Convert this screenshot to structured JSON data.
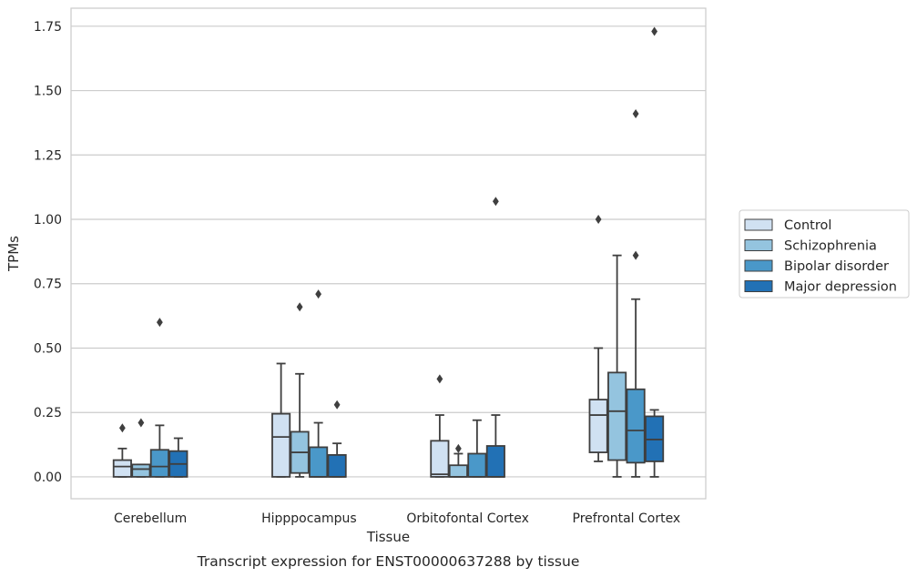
{
  "chart_data": {
    "type": "box",
    "title": "",
    "caption": "Transcript expression for ENST00000637288 by tissue",
    "xlabel": "Tissue",
    "ylabel": "TPMs",
    "ylim": [
      -0.085,
      1.82
    ],
    "yticks": [
      "0.00",
      "0.25",
      "0.50",
      "0.75",
      "1.00",
      "1.25",
      "1.50",
      "1.75"
    ],
    "grid": "horizontal",
    "legend_position": "right",
    "categories": [
      "Cerebellum",
      "Hipppocampus",
      "Orbitofontal Cortex",
      "Prefrontal Cortex"
    ],
    "series": [
      {
        "name": "Control",
        "color": "#d0e1f2",
        "boxes": [
          {
            "whislo": 0.0,
            "q1": 0.0,
            "med": 0.04,
            "q3": 0.065,
            "whishi": 0.11,
            "fliers": [
              0.19
            ]
          },
          {
            "whislo": 0.0,
            "q1": 0.0,
            "med": 0.155,
            "q3": 0.245,
            "whishi": 0.44,
            "fliers": []
          },
          {
            "whislo": 0.0,
            "q1": 0.0,
            "med": 0.01,
            "q3": 0.14,
            "whishi": 0.24,
            "fliers": [
              0.38
            ]
          },
          {
            "whislo": 0.06,
            "q1": 0.095,
            "med": 0.24,
            "q3": 0.3,
            "whishi": 0.5,
            "fliers": [
              1.0
            ]
          }
        ]
      },
      {
        "name": "Schizophrenia",
        "color": "#94c4df",
        "boxes": [
          {
            "whislo": 0.0,
            "q1": 0.0,
            "med": 0.03,
            "q3": 0.048,
            "whishi": 0.048,
            "fliers": [
              0.21
            ]
          },
          {
            "whislo": 0.0,
            "q1": 0.015,
            "med": 0.095,
            "q3": 0.175,
            "whishi": 0.4,
            "fliers": [
              0.66
            ]
          },
          {
            "whislo": 0.0,
            "q1": 0.0,
            "med": 0.0,
            "q3": 0.045,
            "whishi": 0.09,
            "fliers": [
              0.11
            ]
          },
          {
            "whislo": 0.0,
            "q1": 0.065,
            "med": 0.255,
            "q3": 0.405,
            "whishi": 0.86,
            "fliers": []
          }
        ]
      },
      {
        "name": "Bipolar disorder",
        "color": "#4a98c9",
        "boxes": [
          {
            "whislo": 0.0,
            "q1": 0.0,
            "med": 0.04,
            "q3": 0.105,
            "whishi": 0.2,
            "fliers": [
              0.6
            ]
          },
          {
            "whislo": 0.0,
            "q1": 0.0,
            "med": 0.0,
            "q3": 0.115,
            "whishi": 0.21,
            "fliers": [
              0.71
            ]
          },
          {
            "whislo": 0.0,
            "q1": 0.0,
            "med": 0.0,
            "q3": 0.09,
            "whishi": 0.22,
            "fliers": []
          },
          {
            "whislo": 0.0,
            "q1": 0.055,
            "med": 0.18,
            "q3": 0.34,
            "whishi": 0.69,
            "fliers": [
              0.86,
              1.41
            ]
          }
        ]
      },
      {
        "name": "Major depression",
        "color": "#2271b5",
        "boxes": [
          {
            "whislo": 0.0,
            "q1": 0.0,
            "med": 0.05,
            "q3": 0.1,
            "whishi": 0.15,
            "fliers": []
          },
          {
            "whislo": 0.0,
            "q1": 0.0,
            "med": 0.0,
            "q3": 0.085,
            "whishi": 0.13,
            "fliers": [
              0.28
            ]
          },
          {
            "whislo": 0.0,
            "q1": 0.0,
            "med": 0.0,
            "q3": 0.12,
            "whishi": 0.24,
            "fliers": [
              1.07
            ]
          },
          {
            "whislo": 0.0,
            "q1": 0.06,
            "med": 0.145,
            "q3": 0.235,
            "whishi": 0.26,
            "fliers": [
              1.73
            ]
          }
        ]
      }
    ]
  }
}
